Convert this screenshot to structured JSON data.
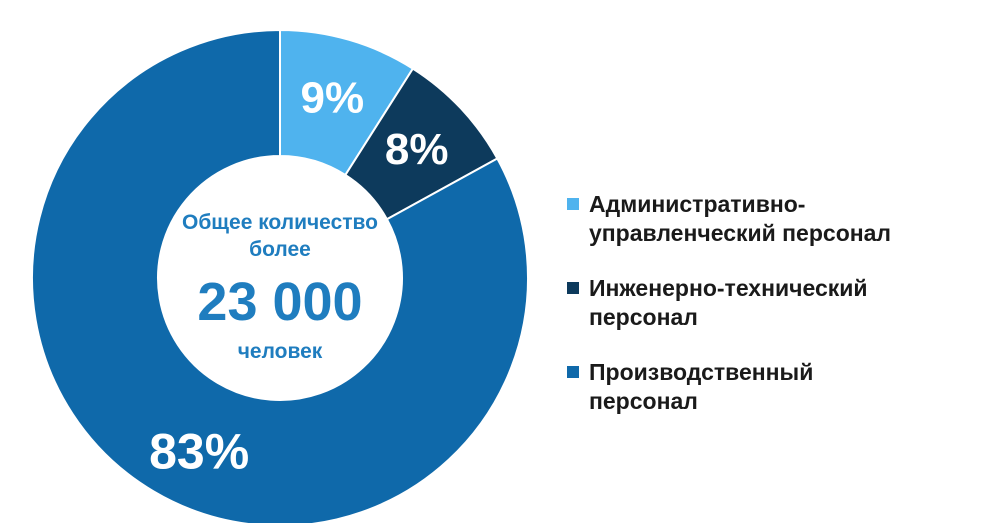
{
  "chart_data": {
    "type": "pie",
    "donut": true,
    "categories": [
      "Административно-управленческий персонал",
      "Инженерно-технический персонал",
      "Производственный персонал"
    ],
    "values": [
      9,
      8,
      83
    ],
    "value_labels": [
      "9%",
      "8%",
      "83%"
    ],
    "colors": [
      "#4fb3ee",
      "#0d3a5c",
      "#0f69aa"
    ],
    "legend_labels": [
      "Административно-\nуправленческий персонал",
      "Инженерно-технический\nперсонал",
      "Производственный\nперсонал"
    ],
    "legend_position": "right",
    "center": {
      "line1": "Общее количество",
      "line2": "более",
      "value": "23 000",
      "line3": "человек",
      "color": "#1f7dbf"
    }
  }
}
